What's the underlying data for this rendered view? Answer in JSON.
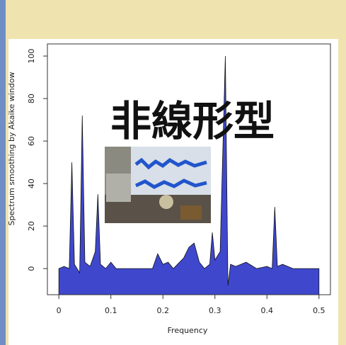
{
  "chart_data": {
    "type": "area",
    "annotation": "非線形型",
    "xlabel": "Frequency",
    "ylabel": "Spectrum smoothing by Akaike window",
    "color": "#3f48cc",
    "x": [
      0,
      0.01,
      0.02,
      0.025,
      0.03,
      0.04,
      0.045,
      0.05,
      0.06,
      0.07,
      0.075,
      0.08,
      0.09,
      0.1,
      0.11,
      0.15,
      0.18,
      0.19,
      0.2,
      0.21,
      0.22,
      0.24,
      0.25,
      0.26,
      0.27,
      0.28,
      0.29,
      0.295,
      0.3,
      0.31,
      0.32,
      0.325,
      0.33,
      0.34,
      0.36,
      0.38,
      0.4,
      0.41,
      0.415,
      0.42,
      0.43,
      0.45,
      0.5
    ],
    "values": [
      0,
      1,
      0,
      50,
      2,
      -2,
      72,
      3,
      1,
      8,
      35,
      2,
      0,
      3,
      0,
      0,
      0,
      7,
      2,
      3,
      0,
      5,
      10,
      12,
      3,
      0,
      2,
      17,
      4,
      8,
      100,
      -8,
      2,
      1,
      3,
      0,
      1,
      0,
      29,
      1,
      2,
      0,
      0
    ],
    "xlim": [
      -0.022,
      0.522
    ],
    "ylim": [
      -12.3,
      105.7
    ],
    "xticks": [
      0.0,
      0.1,
      0.2,
      0.3,
      0.4,
      0.5
    ],
    "yticks": [
      0,
      20,
      40,
      60,
      80,
      100
    ]
  }
}
